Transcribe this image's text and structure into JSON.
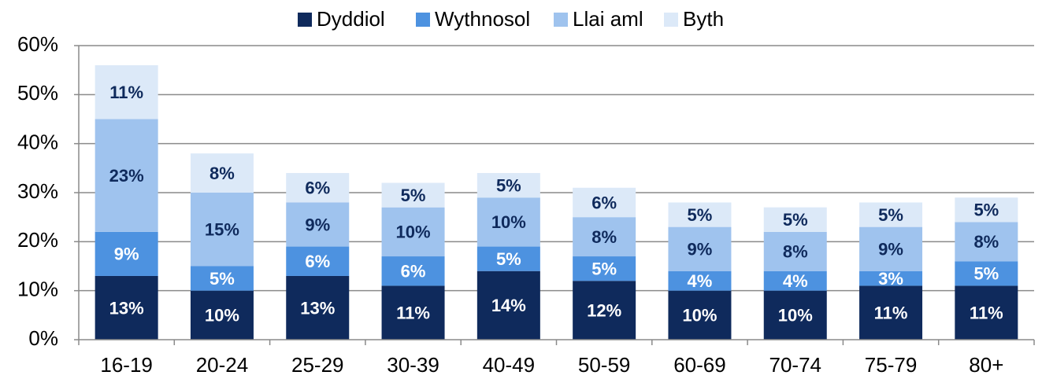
{
  "chart_data": {
    "type": "stacked_bar",
    "categories": [
      "16-19",
      "20-24",
      "25-29",
      "30-39",
      "40-49",
      "50-59",
      "60-69",
      "70-74",
      "75-79",
      "80+"
    ],
    "series": [
      {
        "name": "Dyddiol",
        "color": "#0f2a5c",
        "values": [
          13,
          10,
          13,
          11,
          14,
          12,
          10,
          10,
          11,
          11
        ],
        "value_labels": [
          "13%",
          "10%",
          "13%",
          "11%",
          "14%",
          "12%",
          "10%",
          "10%",
          "11%",
          "11%"
        ]
      },
      {
        "name": "Wythnosol",
        "color": "#4d92e0",
        "values": [
          9,
          5,
          6,
          6,
          5,
          5,
          4,
          4,
          3,
          5
        ],
        "value_labels": [
          "9%",
          "5%",
          "6%",
          "6%",
          "5%",
          "5%",
          "4%",
          "4%",
          "3%",
          "5%"
        ]
      },
      {
        "name": "Llai aml",
        "color": "#9fc3ee",
        "values": [
          23,
          15,
          9,
          10,
          10,
          8,
          9,
          8,
          9,
          8
        ],
        "value_labels": [
          "23%",
          "15%",
          "9%",
          "10%",
          "10%",
          "8%",
          "9%",
          "8%",
          "9%",
          "8%"
        ]
      },
      {
        "name": "Byth",
        "color": "#dce9f8",
        "values": [
          11,
          8,
          6,
          5,
          5,
          6,
          5,
          5,
          5,
          5
        ],
        "value_labels": [
          "11%",
          "8%",
          "6%",
          "5%",
          "5%",
          "6%",
          "5%",
          "5%",
          "5%",
          "5%"
        ]
      }
    ],
    "ylim": [
      0,
      60
    ],
    "yticks": [
      {
        "value": 0,
        "label": "0%"
      },
      {
        "value": 10,
        "label": "10%"
      },
      {
        "value": 20,
        "label": "20%"
      },
      {
        "value": 30,
        "label": "30%"
      },
      {
        "value": 40,
        "label": "40%"
      },
      {
        "value": 50,
        "label": "50%"
      },
      {
        "value": 60,
        "label": "60%"
      }
    ],
    "grid": true,
    "legend": "top"
  }
}
